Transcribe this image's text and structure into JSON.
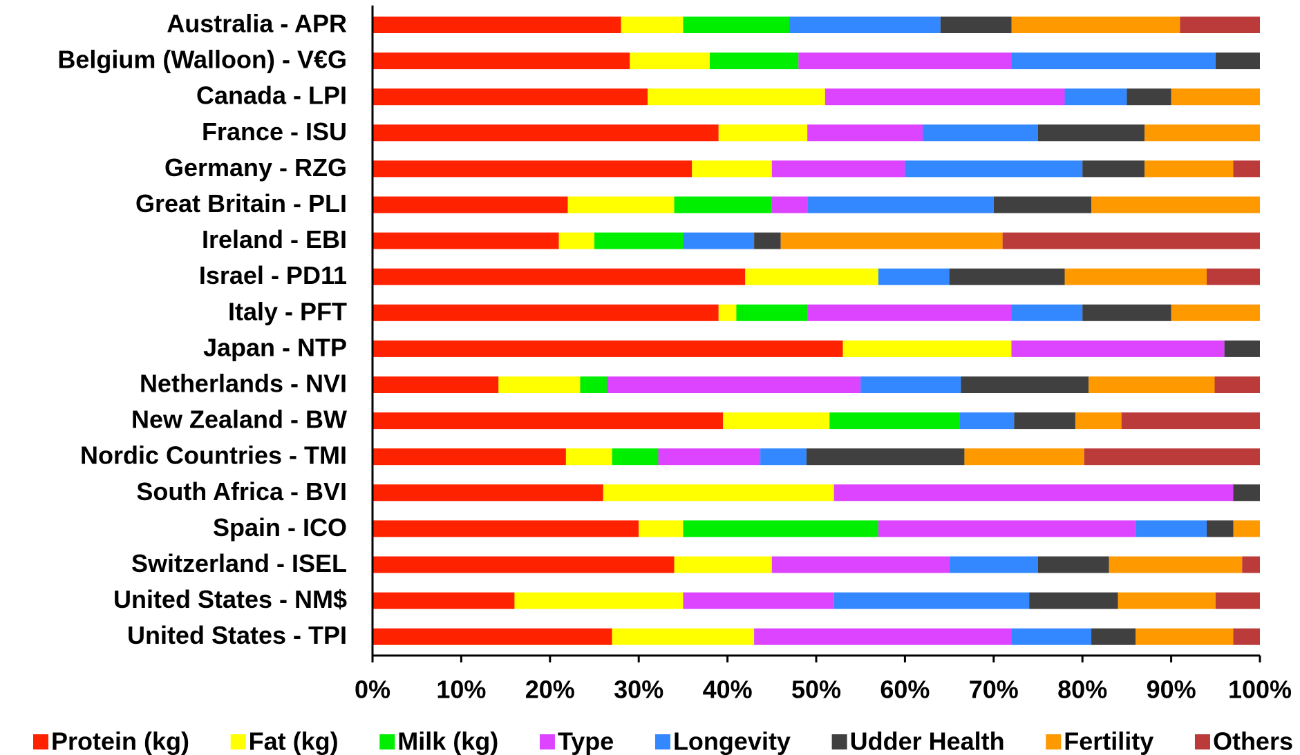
{
  "chart_data": {
    "type": "bar",
    "orientation": "horizontal",
    "stacked": true,
    "categories": [
      "Australia - APR",
      "Belgium (Walloon) - V€G",
      "Canada - LPI",
      "France - ISU",
      "Germany - RZG",
      "Great Britain - PLI",
      "Ireland - EBI",
      "Israel - PD11",
      "Italy - PFT",
      "Japan - NTP",
      "Netherlands - NVI",
      "New Zealand - BW",
      "Nordic Countries - TMI",
      "South Africa - BVI",
      "Spain - ICO",
      "Switzerland - ISEL",
      "United States - NM$",
      "United States - TPI"
    ],
    "series": [
      {
        "name": "Protein (kg)",
        "color": "#ff2200",
        "values": [
          28,
          29,
          31,
          39,
          36,
          22,
          21,
          42,
          39,
          53,
          14.2,
          39.5,
          21.8,
          26,
          30,
          34,
          16,
          27
        ]
      },
      {
        "name": "Fat (kg)",
        "color": "#ffff00",
        "values": [
          7,
          9,
          20,
          10,
          9,
          12,
          4,
          15,
          2,
          19,
          9.2,
          12,
          5.2,
          26,
          5,
          11,
          19,
          16
        ]
      },
      {
        "name": "Milk (kg)",
        "color": "#00ee00",
        "values": [
          12,
          10,
          0,
          0,
          0,
          11,
          10,
          0,
          8,
          0,
          3.0,
          14.7,
          5.2,
          0,
          22,
          0,
          0,
          0
        ]
      },
      {
        "name": "Type",
        "color": "#dd44ff",
        "values": [
          0,
          24,
          27,
          13,
          15,
          4,
          0,
          0,
          23,
          24,
          28.6,
          0,
          11.5,
          45,
          29,
          20,
          17,
          29
        ]
      },
      {
        "name": "Longevity",
        "color": "#3388ff",
        "values": [
          17,
          23,
          7,
          13,
          20,
          21,
          8,
          8,
          8,
          0,
          11.3,
          6.1,
          5.2,
          0,
          8,
          10,
          22,
          9
        ]
      },
      {
        "name": "Udder Health",
        "color": "#404040",
        "values": [
          8,
          5,
          5,
          12,
          7,
          11,
          3,
          13,
          10,
          4,
          14.4,
          6.9,
          17.8,
          3,
          3,
          8,
          10,
          5
        ]
      },
      {
        "name": "Fertility",
        "color": "#ff9900",
        "values": [
          19,
          0,
          10,
          13,
          10,
          19,
          25,
          16,
          10,
          0,
          14.2,
          5.2,
          13.5,
          0,
          3,
          15,
          11,
          11
        ]
      },
      {
        "name": "Others",
        "color": "#bb3b3b",
        "values": [
          9,
          0,
          0,
          0,
          3,
          0,
          29,
          6,
          0,
          0,
          5.1,
          15.6,
          19.8,
          0,
          0,
          2,
          5,
          3
        ]
      }
    ],
    "xlim": [
      0,
      100
    ],
    "xticks": [
      {
        "value": 0,
        "label": "0%"
      },
      {
        "value": 10,
        "label": "10%"
      },
      {
        "value": 20,
        "label": "20%"
      },
      {
        "value": 30,
        "label": "30%"
      },
      {
        "value": 40,
        "label": "40%"
      },
      {
        "value": 50,
        "label": "50%"
      },
      {
        "value": 60,
        "label": "60%"
      },
      {
        "value": 70,
        "label": "70%"
      },
      {
        "value": 80,
        "label": "80%"
      },
      {
        "value": 90,
        "label": "90%"
      },
      {
        "value": 100,
        "label": "100%"
      }
    ],
    "legend": "bottom"
  }
}
